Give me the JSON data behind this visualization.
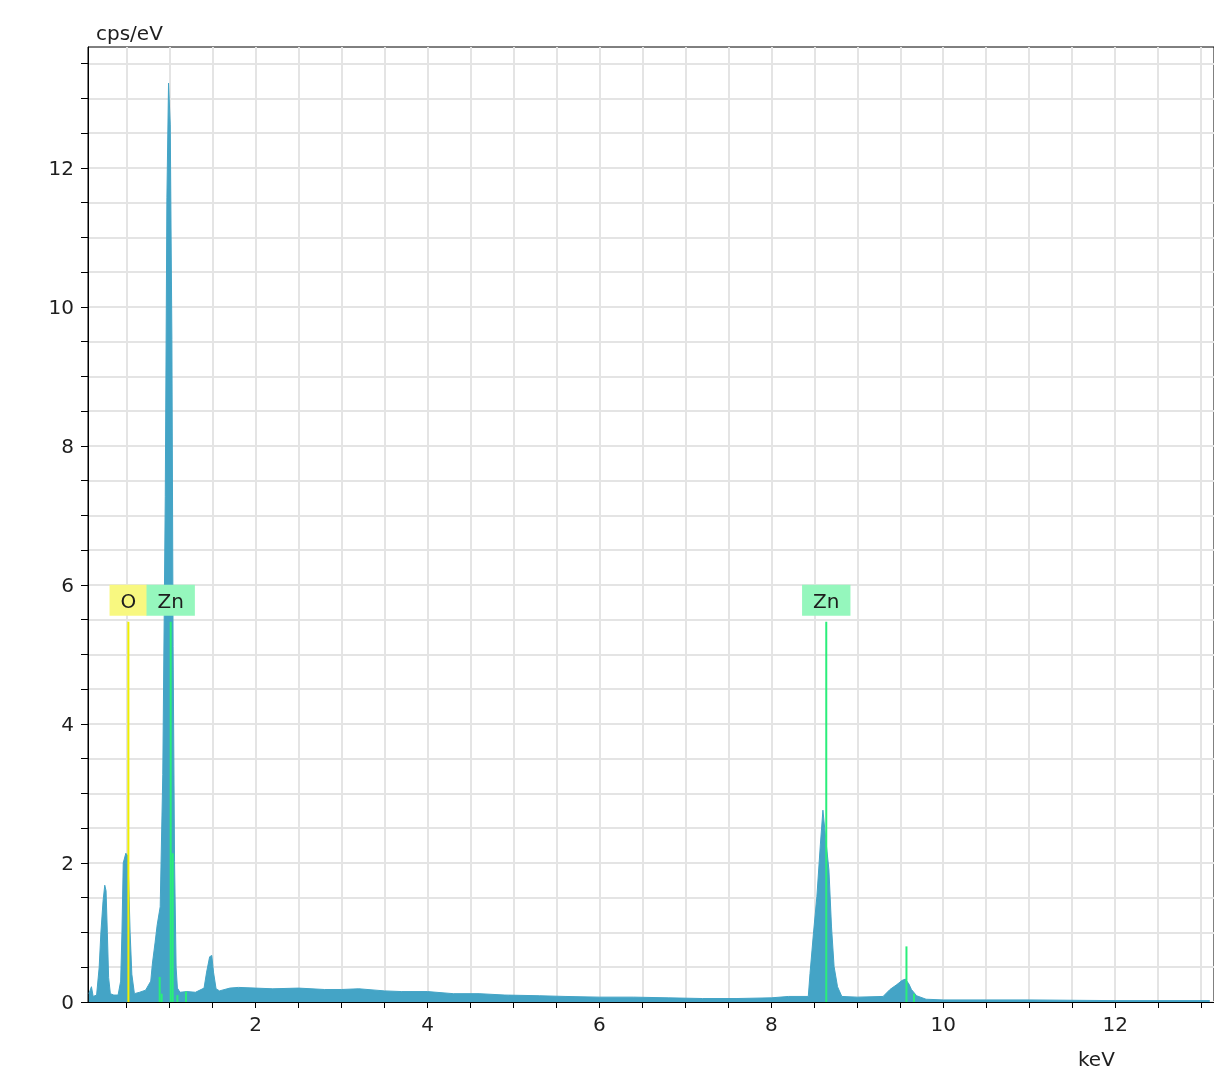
{
  "chart_data": {
    "type": "area",
    "xlabel": "keV",
    "ylabel": "cps/eV",
    "xlim": [
      0.05,
      13.15
    ],
    "ylim": [
      0,
      13.74
    ],
    "xticks": [
      {
        "value": 0.5,
        "label": null
      },
      {
        "value": 1,
        "label": null
      },
      {
        "value": 1.5,
        "label": null
      },
      2,
      {
        "value": 2.5,
        "label": null
      },
      {
        "value": 3,
        "label": null
      },
      {
        "value": 3.5,
        "label": null
      },
      4,
      {
        "value": 4.5,
        "label": null
      },
      {
        "value": 5,
        "label": null
      },
      {
        "value": 5.5,
        "label": null
      },
      6,
      {
        "value": 6.5,
        "label": null
      },
      {
        "value": 7,
        "label": null
      },
      {
        "value": 7.5,
        "label": null
      },
      8,
      {
        "value": 8.5,
        "label": null
      },
      {
        "value": 9,
        "label": null
      },
      {
        "value": 9.5,
        "label": null
      },
      10,
      {
        "value": 10.5,
        "label": null
      },
      {
        "value": 11,
        "label": null
      },
      {
        "value": 11.5,
        "label": null
      },
      12,
      {
        "value": 12.5,
        "label": null
      },
      {
        "value": 13,
        "label": null
      }
    ],
    "yticks": [
      0,
      {
        "value": 0.5,
        "label": null
      },
      {
        "value": 1,
        "label": null
      },
      {
        "value": 1.5,
        "label": null
      },
      2,
      {
        "value": 2.5,
        "label": null
      },
      {
        "value": 3,
        "label": null
      },
      {
        "value": 3.5,
        "label": null
      },
      4,
      {
        "value": 4.5,
        "label": null
      },
      {
        "value": 5,
        "label": null
      },
      {
        "value": 5.5,
        "label": null
      },
      6,
      {
        "value": 6.5,
        "label": null
      },
      {
        "value": 7,
        "label": null
      },
      {
        "value": 7.5,
        "label": null
      },
      8,
      {
        "value": 8.5,
        "label": null
      },
      {
        "value": 9,
        "label": null
      },
      {
        "value": 9.5,
        "label": null
      },
      10,
      {
        "value": 10.5,
        "label": null
      },
      {
        "value": 11,
        "label": null
      },
      {
        "value": 11.5,
        "label": null
      },
      12,
      {
        "value": 12.5,
        "label": null
      },
      {
        "value": 13,
        "label": null
      },
      {
        "value": 13.5,
        "label": null
      }
    ],
    "grid": true,
    "series": [
      {
        "color": "#44a4c6",
        "x": [
          0.06,
          0.09,
          0.11,
          0.15,
          0.18,
          0.2,
          0.225,
          0.245,
          0.26,
          0.275,
          0.29,
          0.31,
          0.35,
          0.4,
          0.43,
          0.445,
          0.46,
          0.49,
          0.515,
          0.54,
          0.56,
          0.59,
          0.65,
          0.72,
          0.78,
          0.8,
          0.83,
          0.855,
          0.89,
          0.92,
          0.949,
          0.968,
          0.987,
          1.007,
          1.026,
          1.04,
          1.057,
          1.075,
          1.09,
          1.12,
          1.2,
          1.3,
          1.4,
          1.43,
          1.465,
          1.49,
          1.51,
          1.54,
          1.58,
          1.7,
          1.8,
          2.0,
          2.2,
          2.5,
          2.8,
          3.0,
          3.2,
          3.5,
          3.7,
          4.0,
          4.3,
          4.6,
          4.9,
          5.3,
          5.6,
          6.0,
          6.4,
          6.8,
          7.2,
          7.6,
          8.0,
          8.2,
          8.43,
          8.45,
          8.49,
          8.53,
          8.57,
          8.6,
          8.64,
          8.67,
          8.7,
          8.73,
          8.77,
          8.82,
          9.0,
          9.3,
          9.38,
          9.46,
          9.52,
          9.56,
          9.6,
          9.63,
          9.69,
          9.8,
          10.0,
          10.5,
          11.0,
          12.0,
          13.1
        ],
        "values": [
          0.12,
          0.22,
          0.08,
          0.1,
          0.5,
          1.0,
          1.45,
          1.68,
          1.6,
          1.0,
          0.35,
          0.12,
          0.1,
          0.1,
          0.3,
          1.0,
          2.0,
          2.14,
          2.1,
          1.0,
          0.4,
          0.12,
          0.14,
          0.17,
          0.3,
          0.56,
          0.85,
          1.11,
          1.37,
          3.27,
          7.27,
          11.57,
          13.22,
          12.62,
          9.53,
          5.11,
          2.02,
          0.5,
          0.2,
          0.14,
          0.15,
          0.14,
          0.2,
          0.43,
          0.65,
          0.67,
          0.43,
          0.19,
          0.16,
          0.2,
          0.21,
          0.2,
          0.19,
          0.2,
          0.18,
          0.18,
          0.19,
          0.16,
          0.15,
          0.15,
          0.12,
          0.12,
          0.1,
          0.09,
          0.08,
          0.07,
          0.07,
          0.06,
          0.05,
          0.05,
          0.06,
          0.08,
          0.08,
          0.41,
          0.99,
          1.52,
          2.26,
          2.76,
          2.26,
          1.9,
          1.08,
          0.51,
          0.22,
          0.08,
          0.07,
          0.08,
          0.18,
          0.25,
          0.31,
          0.33,
          0.26,
          0.18,
          0.09,
          0.04,
          0.03,
          0.03,
          0.03,
          0.02,
          0.02
        ]
      },
      {
        "type": "bar",
        "color": "#f0f000",
        "x": [
          0.52
        ],
        "values": [
          5.47
        ],
        "value_labels": [
          "O"
        ]
      },
      {
        "type": "bar",
        "color": "#2aee7a",
        "x": [
          0.884,
          0.907,
          1.012,
          1.035,
          1.09,
          1.19,
          8.639,
          9.572,
          9.66
        ],
        "values": [
          0.36,
          0.12,
          5.47,
          2.14,
          0.1,
          0.15,
          5.47,
          0.8,
          0.12
        ],
        "value_labels": [
          null,
          null,
          "Zn",
          null,
          null,
          null,
          "Zn",
          null,
          null
        ]
      }
    ]
  }
}
